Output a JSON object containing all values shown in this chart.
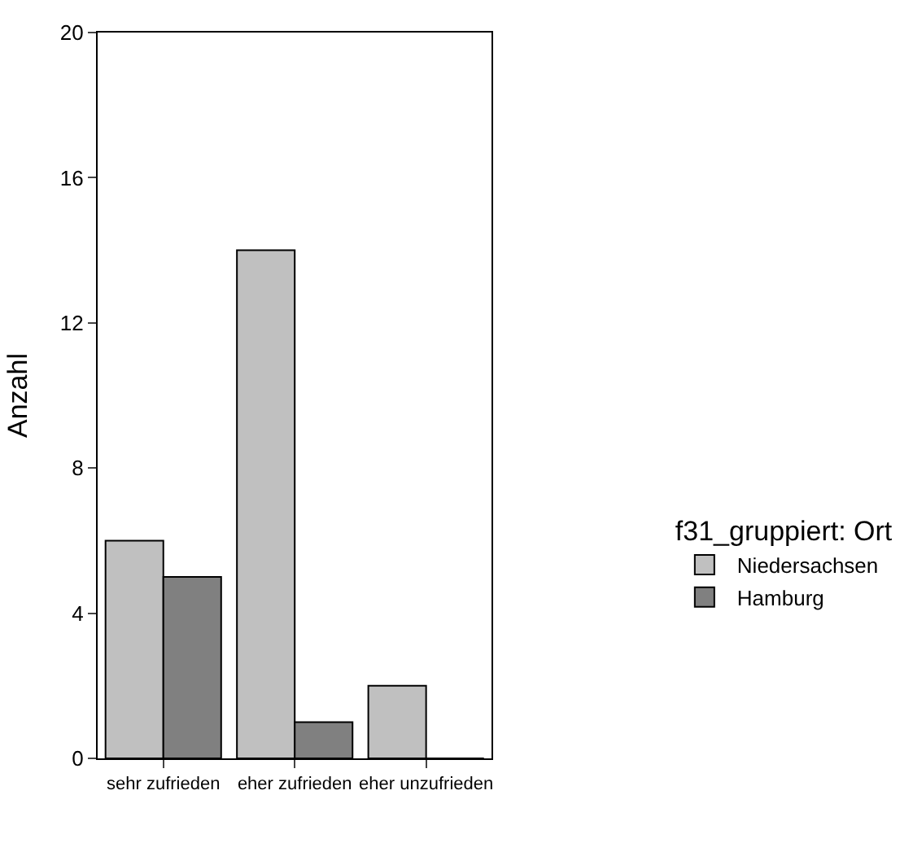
{
  "chart_data": {
    "type": "bar",
    "ylabel": "Anzahl",
    "legend_title": "f31_gruppiert: Ort",
    "categories": [
      "sehr zufrieden",
      "eher zufrieden",
      "eher unzufrieden"
    ],
    "series": [
      {
        "name": "Niedersachsen",
        "color": "#c0c0c0",
        "values": [
          6,
          14,
          2
        ]
      },
      {
        "name": "Hamburg",
        "color": "#808080",
        "values": [
          5,
          1,
          0
        ]
      }
    ],
    "ylim": [
      0,
      20
    ],
    "yticks": [
      0,
      4,
      8,
      12,
      16,
      20
    ],
    "legend": "right"
  }
}
